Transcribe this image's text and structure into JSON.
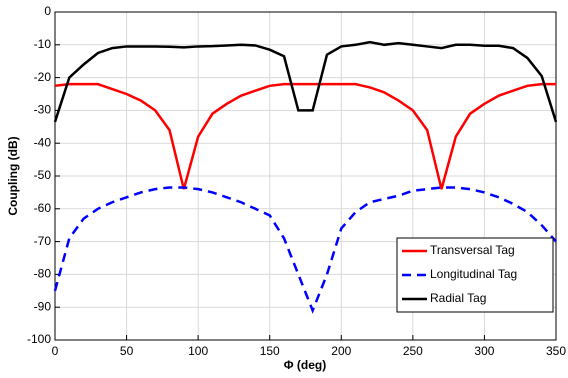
{
  "chart_data": {
    "type": "line",
    "xlabel": "Φ (deg)",
    "ylabel": "Coupling (dB)",
    "x": [
      0,
      10,
      20,
      30,
      40,
      50,
      60,
      70,
      80,
      90,
      100,
      110,
      120,
      130,
      140,
      150,
      160,
      170,
      180,
      190,
      200,
      210,
      220,
      230,
      240,
      250,
      260,
      270,
      280,
      290,
      300,
      310,
      320,
      330,
      340,
      350
    ],
    "series": [
      {
        "name": "Transversal Tag",
        "color": "#ff0000",
        "linestyle": "solid",
        "values": [
          -22.5,
          -22,
          -22,
          -22,
          -23.5,
          -25,
          -27,
          -30,
          -36,
          -54,
          -38,
          -31,
          -28,
          -25.5,
          -24,
          -22.5,
          -22,
          -22,
          -22,
          -22,
          -22,
          -22,
          -23,
          -24.5,
          -27,
          -30,
          -36,
          -54,
          -38,
          -31,
          -28,
          -25.5,
          -24,
          -22.5,
          -22,
          -22
        ]
      },
      {
        "name": "Longitudinal Tag",
        "color": "#0000ff",
        "linestyle": "dashed",
        "values": [
          -85,
          -69,
          -63,
          -60,
          -58,
          -56.5,
          -55,
          -54,
          -53.5,
          -53.5,
          -54,
          -55,
          -56.5,
          -58,
          -60,
          -62,
          -69,
          -80,
          -91,
          -80,
          -66,
          -61,
          -58,
          -57,
          -56,
          -54.5,
          -54,
          -53.5,
          -53.5,
          -54,
          -55,
          -56.5,
          -58.5,
          -61,
          -65,
          -70
        ]
      },
      {
        "name": "Radial Tag",
        "color": "#000000",
        "linestyle": "solid",
        "values": [
          -33.5,
          -20,
          -16,
          -12.5,
          -11,
          -10.5,
          -10.5,
          -10.5,
          -10.6,
          -10.8,
          -10.5,
          -10.4,
          -10.2,
          -10,
          -10.2,
          -11.5,
          -13.5,
          -30,
          -30,
          -13,
          -10.5,
          -10,
          -9.2,
          -10,
          -9.5,
          -10,
          -10.5,
          -11,
          -10,
          -10,
          -10.3,
          -10.3,
          -11,
          -14,
          -19.5,
          -33.5
        ]
      }
    ],
    "xlim": [
      0,
      350
    ],
    "xticks": [
      0,
      50,
      100,
      150,
      200,
      250,
      300,
      350
    ],
    "ylim": [
      -100,
      0
    ],
    "yticks": [
      -100,
      -90,
      -80,
      -70,
      -60,
      -50,
      -40,
      -30,
      -20,
      -10,
      0
    ],
    "grid": true,
    "legend": "lower right"
  }
}
